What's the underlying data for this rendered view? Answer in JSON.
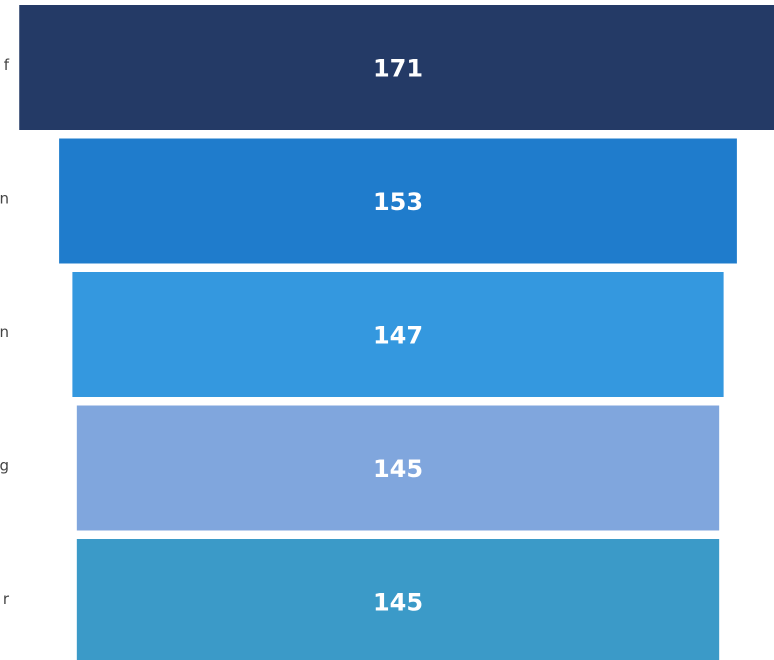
{
  "chart_data": {
    "type": "funnel",
    "categories": [
      "f",
      "n",
      "n",
      "g",
      "r"
    ],
    "values": [
      171,
      153,
      147,
      145,
      145
    ],
    "colors": [
      "#243a66",
      "#1f7ccc",
      "#3498df",
      "#80a6dd",
      "#3b9ac8"
    ]
  }
}
